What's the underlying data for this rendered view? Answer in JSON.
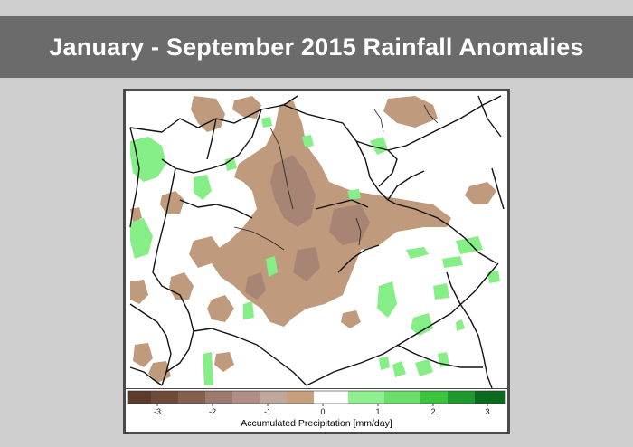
{
  "title": "January - September 2015 Rainfall Anomalies",
  "legend": {
    "caption": "Accumulated Precipitation [mm/day]",
    "tick_labels": [
      "-3",
      "-2",
      "-1",
      "0",
      "1",
      "2",
      "3"
    ],
    "colors": {
      "deficit_dark": "#5c3a2c",
      "deficit_mid": "#9c7a6e",
      "deficit_light": "#c0a89c",
      "deficit_tan": "#c8a07e",
      "neutral": "#ffffff",
      "surplus_light": "#8ef08e",
      "surplus_mid": "#3cc43c",
      "surplus_dark": "#0a6a1e"
    }
  },
  "colors": {
    "title_bar": "#6b6b6b",
    "page_background": "#cfcfcf",
    "frame": "#4a4a4a"
  }
}
